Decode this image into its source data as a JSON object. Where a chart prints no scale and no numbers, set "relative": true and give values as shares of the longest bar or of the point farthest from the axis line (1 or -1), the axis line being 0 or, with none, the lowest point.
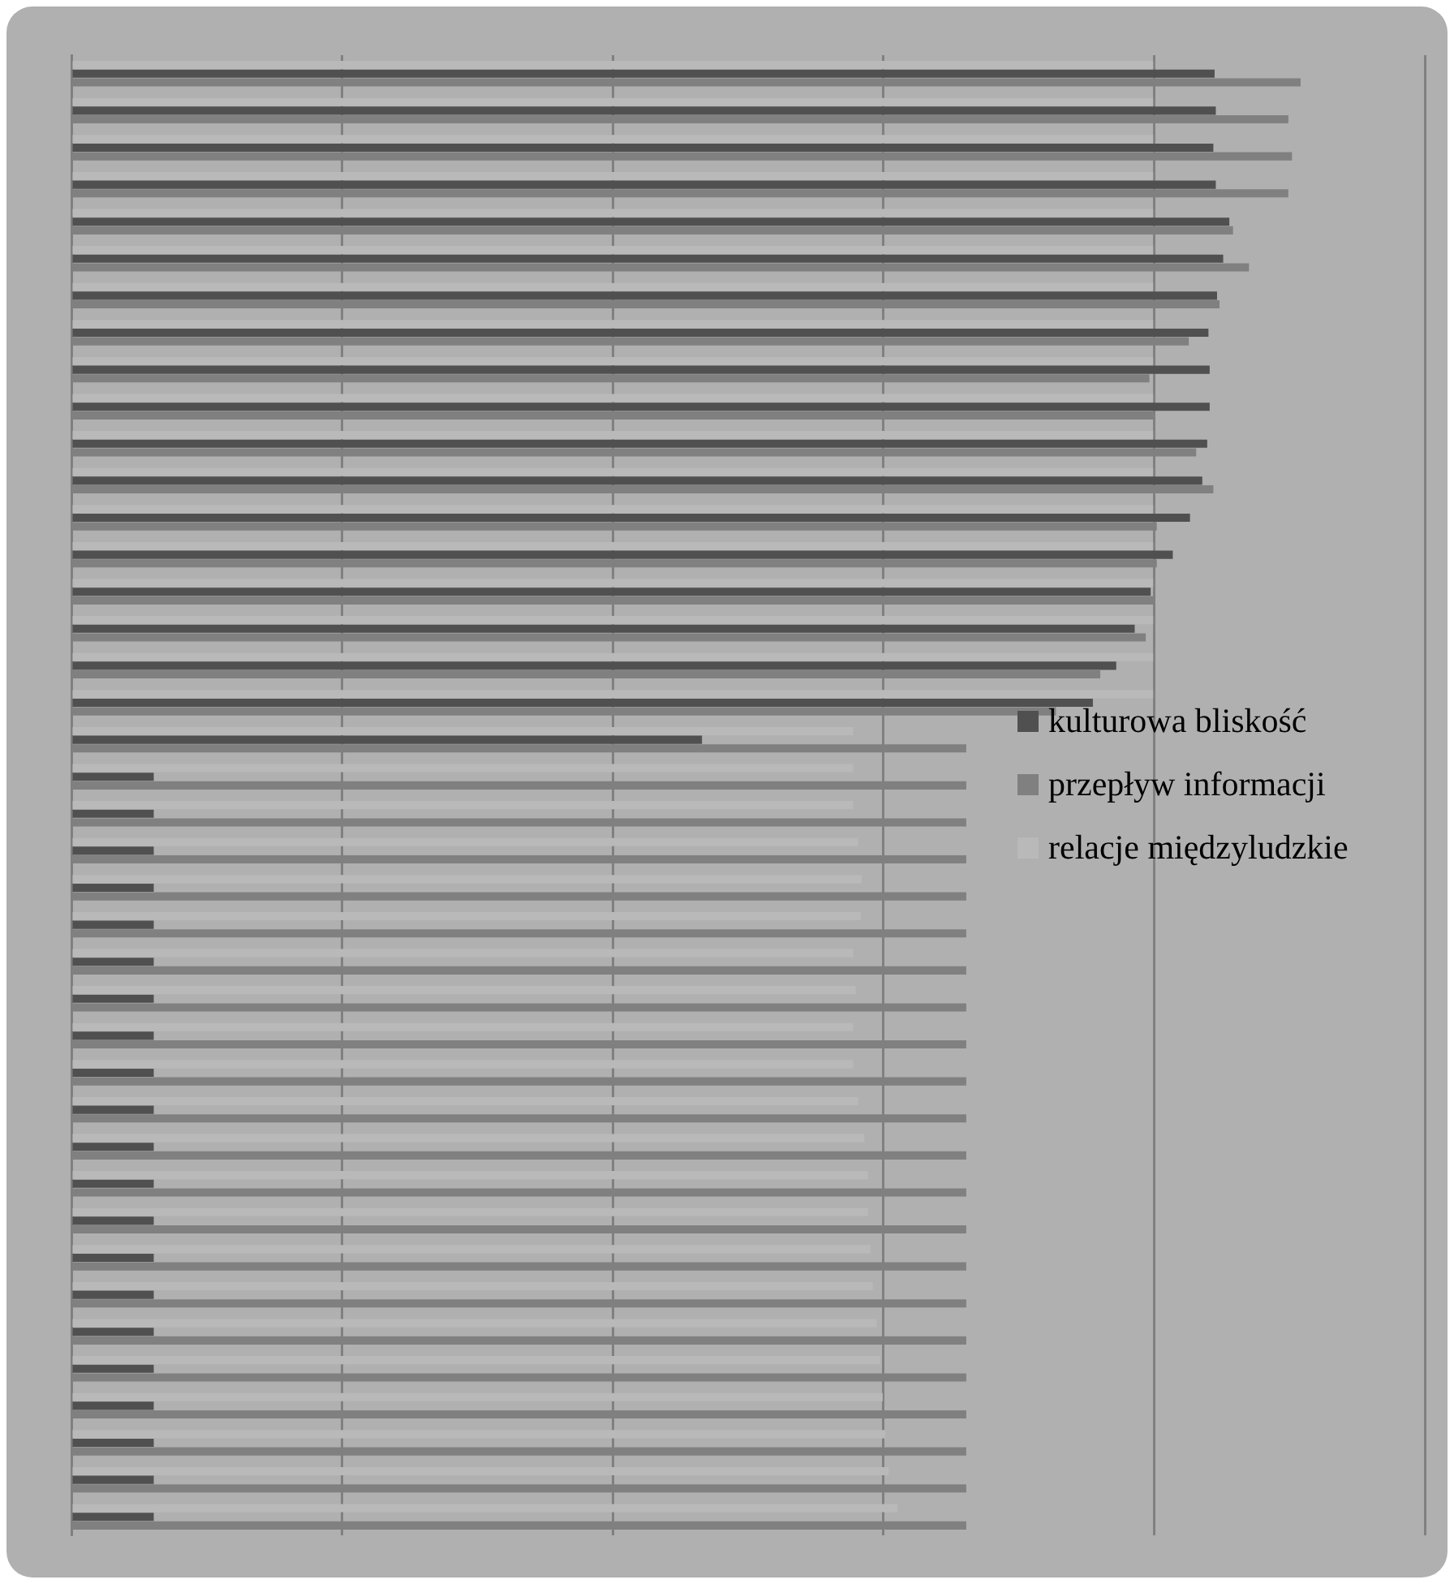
{
  "chart_data": {
    "type": "bar",
    "orientation": "horizontal",
    "relative": true,
    "grid": "x",
    "legend": "right",
    "categories": [
      null,
      null,
      null,
      null,
      null,
      null,
      null,
      null,
      null,
      null,
      null,
      null,
      null,
      null,
      null,
      null,
      null,
      null,
      null,
      null,
      null,
      null,
      null,
      null,
      null,
      null,
      null,
      null,
      null,
      null,
      null,
      null,
      null,
      null,
      null,
      null,
      null,
      null,
      null,
      null
    ],
    "series": [
      {
        "name": "kulturowa bliskość",
        "color": "#505050",
        "values": [
          0.93,
          0.931,
          0.929,
          0.931,
          0.942,
          0.937,
          0.932,
          0.925,
          0.926,
          0.926,
          0.924,
          0.92,
          0.91,
          0.896,
          0.878,
          0.865,
          0.85,
          0.831,
          0.513,
          0.067,
          0.067,
          0.067,
          0.067,
          0.067,
          0.067,
          0.067,
          0.067,
          0.067,
          0.067,
          0.067,
          0.067,
          0.067,
          0.067,
          0.067,
          0.067,
          0.067,
          0.067,
          0.067,
          0.067,
          0.067
        ]
      },
      {
        "name": "przepływ informacji",
        "color": "#808080",
        "values": [
          1.0,
          0.99,
          0.993,
          0.99,
          0.945,
          0.958,
          0.934,
          0.909,
          0.877,
          0.881,
          0.915,
          0.929,
          0.883,
          0.883,
          0.881,
          0.874,
          0.837,
          0.801,
          0.728,
          0.728,
          0.728,
          0.728,
          0.728,
          0.728,
          0.728,
          0.728,
          0.728,
          0.728,
          0.728,
          0.728,
          0.728,
          0.728,
          0.728,
          0.728,
          0.728,
          0.728,
          0.728,
          0.728,
          0.728,
          0.728
        ]
      },
      {
        "name": "relacje międzyludzkie",
        "color": "#b9b9b9",
        "values": [
          0.88,
          0.88,
          0.88,
          0.88,
          0.88,
          0.88,
          0.88,
          0.88,
          0.88,
          0.88,
          0.88,
          0.88,
          0.88,
          0.88,
          0.88,
          0.88,
          0.88,
          0.88,
          0.636,
          0.636,
          0.636,
          0.64,
          0.643,
          0.642,
          0.636,
          0.638,
          0.636,
          0.636,
          0.64,
          0.645,
          0.648,
          0.648,
          0.65,
          0.652,
          0.655,
          0.658,
          0.66,
          0.662,
          0.665,
          0.672
        ]
      }
    ]
  }
}
